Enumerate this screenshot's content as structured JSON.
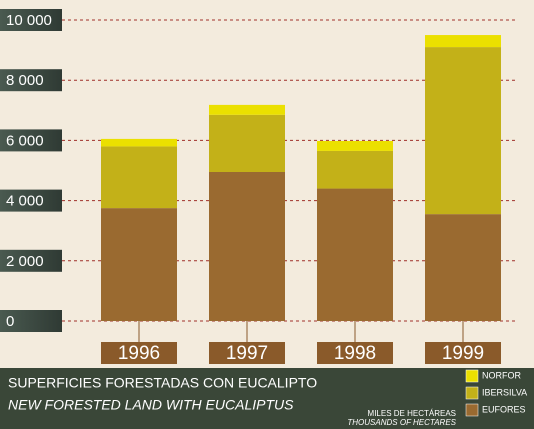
{
  "chart_data": {
    "type": "stacked_bar",
    "title": "SUPERFICIES FORESTADAS CON EUCALIPTO",
    "subtitle": "NEW FORESTED LAND WITH EUCALIPTUS",
    "unit_label": "MILES DE HECTÁREAS",
    "unit_label_en": "THOUSANDS OF HECTARES",
    "categories": [
      "1996",
      "1997",
      "1998",
      "1999"
    ],
    "series": [
      {
        "name": "NORFOR",
        "color": "#ebe000",
        "values": [
          250,
          330,
          330,
          400
        ]
      },
      {
        "name": "IBERSILVA",
        "color": "#c3b118",
        "values": [
          2050,
          1900,
          1250,
          5550
        ]
      },
      {
        "name": "EUFORES",
        "color": "#9a6a30",
        "values": [
          3750,
          4950,
          4400,
          3550
        ]
      }
    ],
    "ylim": [
      0,
      10000
    ],
    "yticks": [
      0,
      {
        "value": 2000,
        "label": "2 000"
      },
      {
        "value": 4000,
        "label": "4 000"
      },
      {
        "value": 6000,
        "label": "6 000"
      },
      {
        "value": 8000,
        "label": "8 000"
      },
      {
        "value": 10000,
        "label": "10 000"
      }
    ],
    "grid": true
  }
}
